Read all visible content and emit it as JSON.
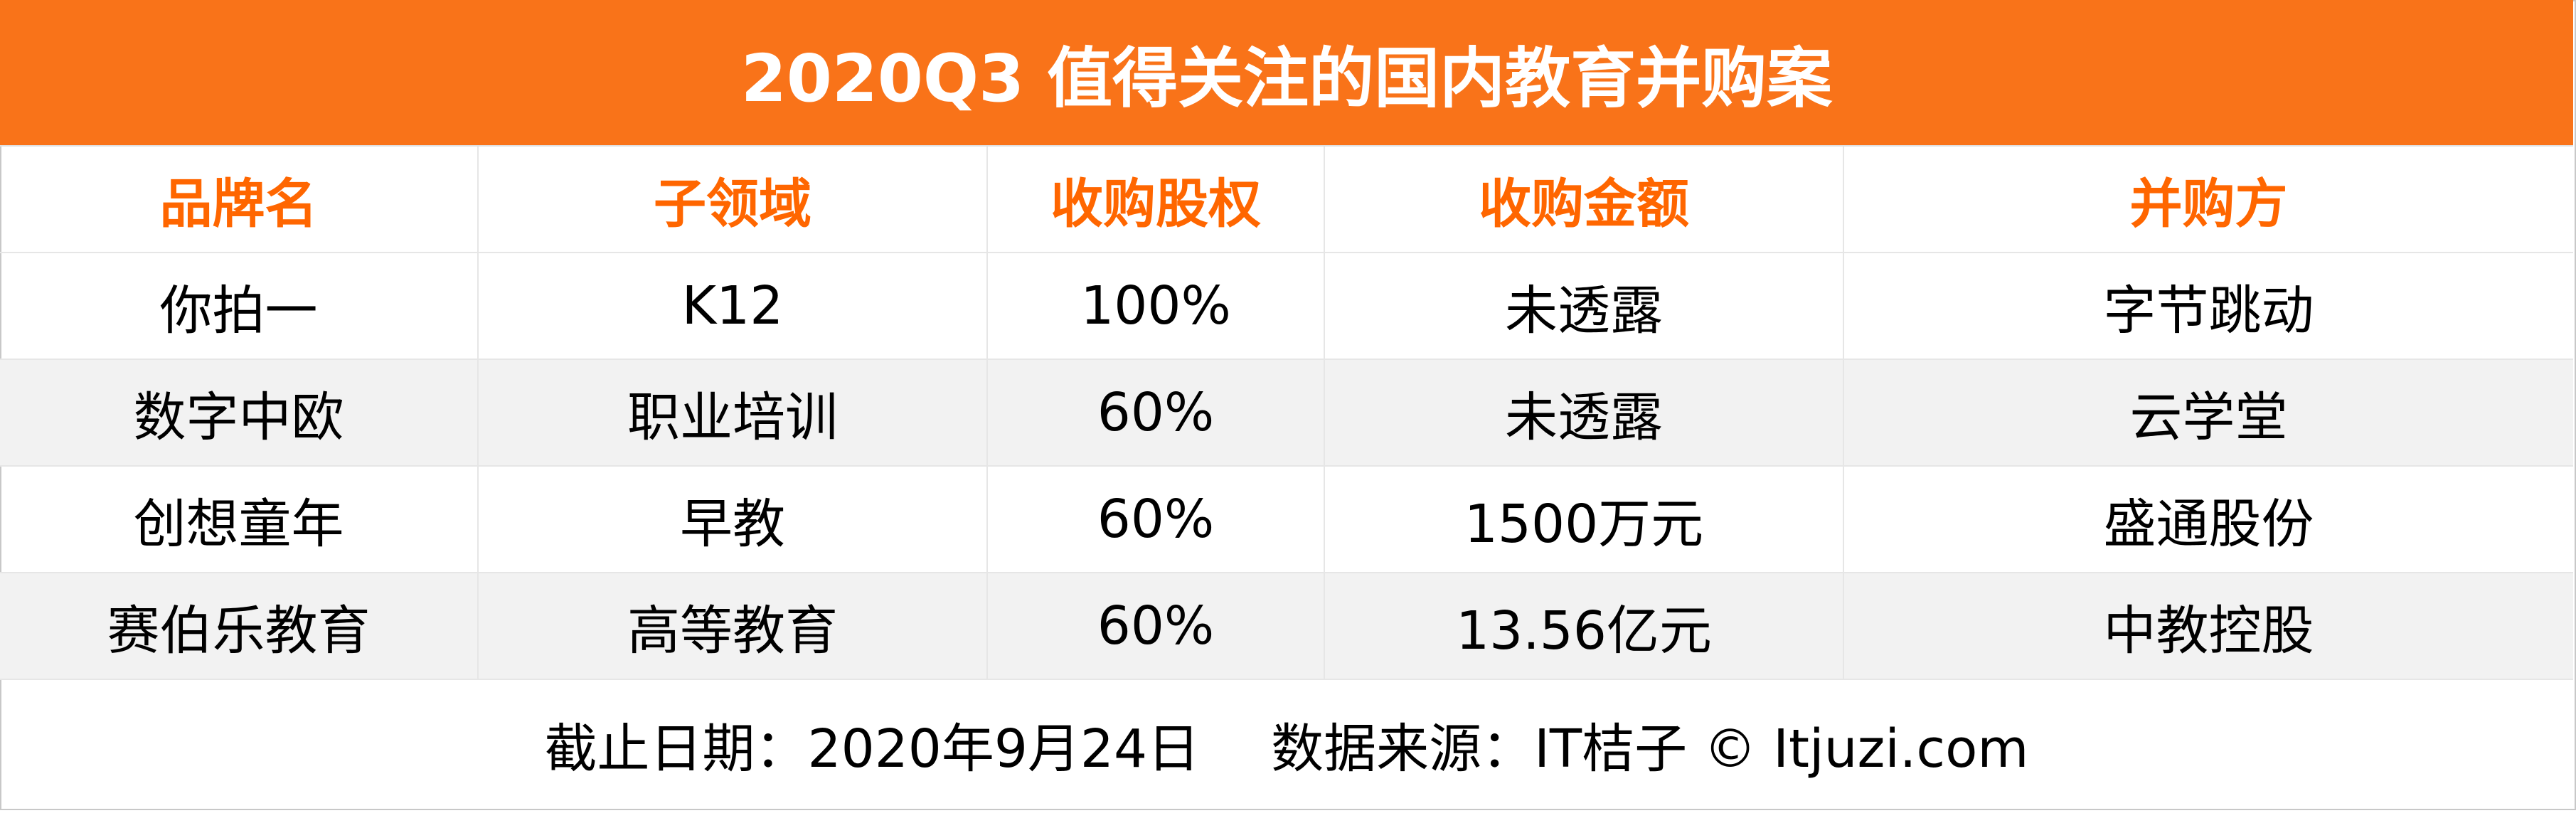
{
  "title": "2020Q3 值得关注的国内教育并购案",
  "colors": {
    "title_bg": "#f97319",
    "header_text": "#ff6600",
    "alt_row_bg": "#f2f2f2"
  },
  "table": {
    "headers": [
      "品牌名",
      "子领域",
      "收购股权",
      "收购金额",
      "并购方"
    ],
    "rows": [
      [
        "你拍一",
        "K12",
        "100%",
        "未透露",
        "字节跳动"
      ],
      [
        "数字中欧",
        "职业培训",
        "60%",
        "未透露",
        "云学堂"
      ],
      [
        "创想童年",
        "早教",
        "60%",
        "1500万元",
        "盛通股份"
      ],
      [
        "赛伯乐教育",
        "高等教育",
        "60%",
        "13.56亿元",
        "中教控股"
      ]
    ]
  },
  "footer": {
    "date": "截止日期：2020年9月24日",
    "source": "数据来源：IT桔子 © Itjuzi.com"
  }
}
